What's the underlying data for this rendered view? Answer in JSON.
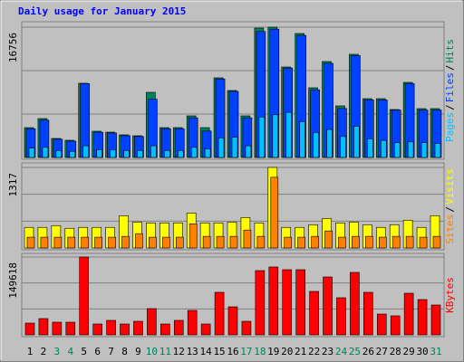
{
  "chart_data": [
    {
      "type": "bar",
      "title": "Daily usage for January 2015",
      "ylim": [
        0,
        16756
      ],
      "yticks": [
        16756
      ],
      "legend_separator": "/",
      "series": [
        {
          "name": "Hits",
          "color": "#00805c",
          "values": [
            3840,
            5003,
            2444,
            2211,
            9542,
            3374,
            3258,
            2909,
            2793,
            8378,
            3840,
            3840,
            5353,
            3840,
            10240,
            8611,
            5353,
            16640,
            16756,
            11636,
            15942,
            8960,
            12334,
            6633,
            13265,
            7563,
            7563,
            6167,
            9658,
            6283,
            6283
          ]
        },
        {
          "name": "Files",
          "color": "#0040ff",
          "values": [
            3700,
            4800,
            2350,
            2100,
            9500,
            3250,
            3150,
            2800,
            2700,
            7500,
            3700,
            3700,
            5100,
            3400,
            10100,
            8500,
            5100,
            16200,
            16500,
            11500,
            15700,
            8700,
            12100,
            6300,
            13100,
            7400,
            7400,
            6100,
            9500,
            6100,
            6100
          ]
        },
        {
          "name": "Pages",
          "color": "#00c0ff",
          "values": [
            1200,
            1300,
            900,
            800,
            1500,
            1000,
            1000,
            900,
            900,
            1500,
            900,
            900,
            1300,
            1100,
            2500,
            2600,
            1500,
            5200,
            5500,
            5800,
            4600,
            3200,
            3600,
            2700,
            4000,
            2400,
            2200,
            1900,
            2000,
            1900,
            1800
          ]
        }
      ]
    },
    {
      "type": "bar",
      "ylim": [
        0,
        1317
      ],
      "yticks": [
        1317
      ],
      "legend_separator": "/",
      "series": [
        {
          "name": "Visits",
          "color": "#ffff00",
          "values": [
            337,
            337,
            366,
            322,
            337,
            337,
            337,
            527,
            424,
            410,
            410,
            410,
            571,
            410,
            410,
            424,
            498,
            410,
            1317,
            337,
            337,
            380,
            483,
            410,
            424,
            380,
            337,
            380,
            454,
            337,
            527
          ]
        },
        {
          "name": "Sites",
          "color": "#ff8000",
          "values": [
            176,
            176,
            176,
            176,
            176,
            176,
            176,
            190,
            234,
            176,
            176,
            176,
            395,
            190,
            190,
            190,
            293,
            190,
            1156,
            176,
            176,
            190,
            278,
            176,
            190,
            190,
            176,
            190,
            190,
            176,
            190
          ]
        }
      ]
    },
    {
      "type": "bar",
      "ylim": [
        0,
        149618
      ],
      "yticks": [
        149618
      ],
      "categories": [
        "1",
        "2",
        "3",
        "4",
        "5",
        "6",
        "7",
        "8",
        "9",
        "10",
        "11",
        "12",
        "13",
        "14",
        "15",
        "16",
        "17",
        "18",
        "19",
        "20",
        "21",
        "22",
        "23",
        "24",
        "25",
        "26",
        "27",
        "28",
        "29",
        "30",
        "31"
      ],
      "category_colors": [
        "#000000",
        "#000000",
        "#00805c",
        "#00805c",
        "#000000",
        "#000000",
        "#000000",
        "#000000",
        "#000000",
        "#00805c",
        "#00805c",
        "#000000",
        "#000000",
        "#000000",
        "#000000",
        "#000000",
        "#00805c",
        "#00805c",
        "#000000",
        "#000000",
        "#000000",
        "#000000",
        "#000000",
        "#00805c",
        "#00805c",
        "#000000",
        "#000000",
        "#000000",
        "#000000",
        "#000000",
        "#00805c"
      ],
      "series": [
        {
          "name": "KBytes",
          "color": "#ff0000",
          "values": [
            22617,
            31315,
            24356,
            24356,
            149618,
            20877,
            27836,
            20877,
            26096,
            50452,
            20877,
            27836,
            46972,
            20877,
            81767,
            53931,
            26096,
            123520,
            130481,
            125260,
            125260,
            83507,
            111343,
            71329,
            120041,
            81767,
            40014,
            36534,
            80027,
            67849,
            57410
          ]
        }
      ]
    }
  ]
}
